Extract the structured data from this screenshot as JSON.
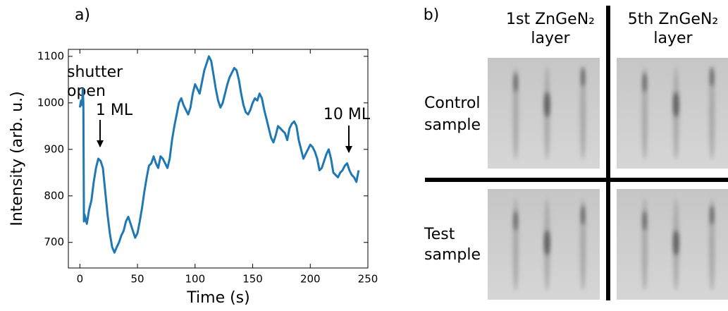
{
  "chart_data": {
    "type": "line",
    "panel_label": "a)",
    "xlabel": "Time (s)",
    "ylabel": "Intensity (arb. u.)",
    "color": "#1f77b4",
    "xlim": [
      -10,
      250
    ],
    "xticks": [
      0,
      50,
      100,
      150,
      200,
      250
    ],
    "ylim": [
      645,
      1115
    ],
    "yticks": [
      700,
      800,
      900,
      1000,
      1100
    ],
    "annotations": [
      "shutter",
      "open",
      "1 ML",
      "10 ML"
    ],
    "x": [
      0,
      1,
      2,
      2.5,
      3,
      3.5,
      4,
      6,
      8,
      10,
      12,
      14,
      16,
      18,
      20,
      22,
      24,
      26,
      28,
      30,
      32,
      34,
      36,
      38,
      40,
      42,
      44,
      46,
      48,
      50,
      52,
      54,
      56,
      58,
      60,
      62,
      64,
      66,
      68,
      70,
      72,
      74,
      76,
      78,
      80,
      82,
      84,
      86,
      88,
      90,
      92,
      94,
      96,
      98,
      100,
      102,
      104,
      106,
      108,
      110,
      112,
      114,
      116,
      118,
      120,
      122,
      124,
      126,
      128,
      130,
      132,
      134,
      136,
      138,
      140,
      142,
      144,
      146,
      148,
      150,
      152,
      154,
      156,
      158,
      160,
      162,
      164,
      166,
      168,
      170,
      172,
      174,
      176,
      178,
      180,
      182,
      184,
      186,
      188,
      190,
      192,
      194,
      196,
      198,
      200,
      202,
      204,
      206,
      208,
      210,
      212,
      214,
      216,
      218,
      220,
      222,
      224,
      226,
      228,
      230,
      232,
      234,
      236,
      238,
      240,
      242
    ],
    "values": [
      990,
      1005,
      995,
      1030,
      1000,
      745,
      760,
      740,
      770,
      790,
      830,
      860,
      880,
      875,
      860,
      810,
      760,
      720,
      690,
      678,
      690,
      700,
      715,
      725,
      745,
      755,
      740,
      725,
      710,
      720,
      745,
      775,
      810,
      840,
      865,
      870,
      885,
      870,
      860,
      885,
      880,
      870,
      860,
      880,
      920,
      950,
      975,
      1000,
      1010,
      995,
      985,
      975,
      990,
      1020,
      1040,
      1030,
      1020,
      1045,
      1070,
      1085,
      1100,
      1090,
      1060,
      1030,
      1005,
      990,
      1000,
      1020,
      1040,
      1055,
      1065,
      1075,
      1070,
      1050,
      1020,
      995,
      980,
      975,
      985,
      1000,
      1010,
      1005,
      1020,
      1010,
      985,
      965,
      945,
      925,
      915,
      930,
      950,
      945,
      940,
      935,
      920,
      945,
      955,
      960,
      950,
      920,
      900,
      880,
      890,
      900,
      910,
      905,
      895,
      880,
      855,
      860,
      875,
      890,
      900,
      880,
      850,
      845,
      840,
      850,
      855,
      865,
      870,
      855,
      845,
      840,
      830,
      855
    ]
  },
  "panel_b": {
    "panel_label": "b)",
    "columns": [
      "1st ZnGeN₂",
      "layer",
      "5th ZnGeN₂",
      "layer"
    ],
    "rows": [
      "Control",
      "sample",
      "Test",
      "sample"
    ]
  }
}
